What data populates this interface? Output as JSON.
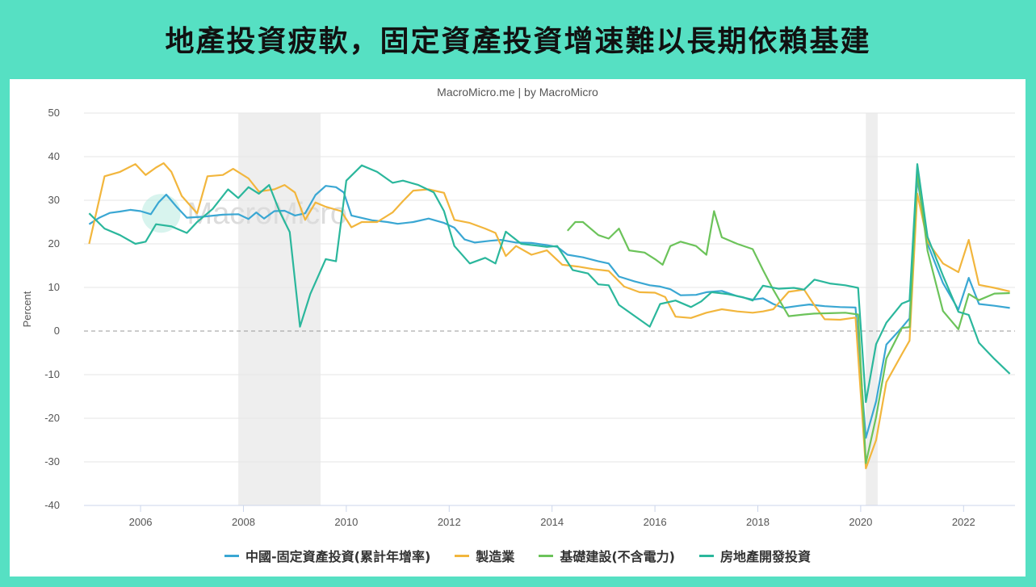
{
  "title": "地產投資疲軟，固定資產投資增速難以長期依賴基建",
  "credit": "MacroMicro.me | by MacroMicro",
  "watermark": "MacroMicro",
  "chart_data": {
    "type": "line",
    "ylabel": "Percent",
    "ylim": [
      -40,
      50
    ],
    "yticks": [
      50,
      40,
      30,
      20,
      10,
      0,
      -10,
      -20,
      -30,
      -40
    ],
    "xlim": [
      2004.9,
      2023.0
    ],
    "xticks": [
      2006,
      2008,
      2010,
      2012,
      2014,
      2016,
      2018,
      2020,
      2022
    ],
    "grid": true,
    "legend_position": "bottom",
    "zero_line": "dashed",
    "shaded_periods": [
      [
        2007.9,
        2009.5
      ],
      [
        2020.1,
        2020.33
      ]
    ],
    "series": [
      {
        "name": "中國-固定資產投資(累計年增率)",
        "color": "#3aa7d3",
        "points": [
          [
            2005.0,
            24.5
          ],
          [
            2005.2,
            26
          ],
          [
            2005.4,
            27.1
          ],
          [
            2005.6,
            27.4
          ],
          [
            2005.8,
            27.8
          ],
          [
            2006.0,
            27.5
          ],
          [
            2006.2,
            26.8
          ],
          [
            2006.35,
            29.5
          ],
          [
            2006.5,
            31.3
          ],
          [
            2006.7,
            28.5
          ],
          [
            2006.9,
            26.0
          ],
          [
            2007.2,
            26.2
          ],
          [
            2007.6,
            26.7
          ],
          [
            2007.9,
            26.8
          ],
          [
            2008.1,
            25.7
          ],
          [
            2008.25,
            27.2
          ],
          [
            2008.4,
            25.8
          ],
          [
            2008.6,
            27.5
          ],
          [
            2008.8,
            27.6
          ],
          [
            2009.0,
            26.5
          ],
          [
            2009.2,
            27.0
          ],
          [
            2009.4,
            31.2
          ],
          [
            2009.6,
            33.3
          ],
          [
            2009.8,
            33.0
          ],
          [
            2009.95,
            31.8
          ],
          [
            2010.1,
            26.5
          ],
          [
            2010.5,
            25.4
          ],
          [
            2010.8,
            25.0
          ],
          [
            2011.0,
            24.6
          ],
          [
            2011.3,
            25.0
          ],
          [
            2011.6,
            25.8
          ],
          [
            2011.9,
            24.8
          ],
          [
            2012.1,
            23.7
          ],
          [
            2012.3,
            21.0
          ],
          [
            2012.5,
            20.3
          ],
          [
            2012.8,
            20.7
          ],
          [
            2013.0,
            20.9
          ],
          [
            2013.3,
            20.3
          ],
          [
            2013.6,
            20.2
          ],
          [
            2013.9,
            19.7
          ],
          [
            2014.1,
            19.3
          ],
          [
            2014.3,
            17.5
          ],
          [
            2014.6,
            16.9
          ],
          [
            2014.9,
            16.0
          ],
          [
            2015.1,
            15.5
          ],
          [
            2015.3,
            12.5
          ],
          [
            2015.6,
            11.4
          ],
          [
            2015.9,
            10.5
          ],
          [
            2016.1,
            10.2
          ],
          [
            2016.3,
            9.6
          ],
          [
            2016.5,
            8.2
          ],
          [
            2016.8,
            8.3
          ],
          [
            2017.0,
            8.9
          ],
          [
            2017.3,
            9.2
          ],
          [
            2017.6,
            8.0
          ],
          [
            2017.9,
            7.2
          ],
          [
            2018.1,
            7.5
          ],
          [
            2018.3,
            6.2
          ],
          [
            2018.5,
            5.3
          ],
          [
            2018.8,
            5.8
          ],
          [
            2019.0,
            6.1
          ],
          [
            2019.3,
            5.7
          ],
          [
            2019.6,
            5.5
          ],
          [
            2019.9,
            5.4
          ],
          [
            2020.1,
            -24.5
          ],
          [
            2020.3,
            -16.1
          ],
          [
            2020.5,
            -3.1
          ],
          [
            2020.8,
            0.8
          ],
          [
            2020.95,
            2.9
          ],
          [
            2021.1,
            35.0
          ],
          [
            2021.3,
            20.0
          ],
          [
            2021.6,
            11.0
          ],
          [
            2021.9,
            4.9
          ],
          [
            2022.1,
            12.2
          ],
          [
            2022.3,
            6.2
          ],
          [
            2022.6,
            5.8
          ],
          [
            2022.9,
            5.3
          ]
        ]
      },
      {
        "name": "製造業",
        "color": "#f2b63d",
        "points": [
          [
            2005.0,
            20
          ],
          [
            2005.3,
            35.5
          ],
          [
            2005.6,
            36.5
          ],
          [
            2005.9,
            38.3
          ],
          [
            2006.1,
            35.8
          ],
          [
            2006.3,
            37.5
          ],
          [
            2006.45,
            38.5
          ],
          [
            2006.6,
            36.5
          ],
          [
            2006.8,
            31
          ],
          [
            2007.1,
            27
          ],
          [
            2007.3,
            35.5
          ],
          [
            2007.6,
            35.8
          ],
          [
            2007.8,
            37.2
          ],
          [
            2008.1,
            35.0
          ],
          [
            2008.3,
            32.0
          ],
          [
            2008.6,
            32.5
          ],
          [
            2008.8,
            33.5
          ],
          [
            2009.0,
            31.8
          ],
          [
            2009.2,
            25.5
          ],
          [
            2009.4,
            29.5
          ],
          [
            2009.6,
            28.5
          ],
          [
            2009.9,
            27.5
          ],
          [
            2010.1,
            23.8
          ],
          [
            2010.3,
            25.0
          ],
          [
            2010.6,
            25.0
          ],
          [
            2010.9,
            27.2
          ],
          [
            2011.1,
            29.8
          ],
          [
            2011.3,
            32.2
          ],
          [
            2011.6,
            32.5
          ],
          [
            2011.9,
            31.7
          ],
          [
            2012.1,
            25.5
          ],
          [
            2012.4,
            24.8
          ],
          [
            2012.7,
            23.5
          ],
          [
            2012.9,
            22.5
          ],
          [
            2013.1,
            17.2
          ],
          [
            2013.3,
            19.5
          ],
          [
            2013.6,
            17.5
          ],
          [
            2013.9,
            18.5
          ],
          [
            2014.2,
            15.2
          ],
          [
            2014.5,
            14.8
          ],
          [
            2014.8,
            14.2
          ],
          [
            2015.1,
            13.8
          ],
          [
            2015.4,
            10.2
          ],
          [
            2015.7,
            8.9
          ],
          [
            2016.0,
            8.8
          ],
          [
            2016.2,
            7.8
          ],
          [
            2016.4,
            3.3
          ],
          [
            2016.7,
            3.0
          ],
          [
            2017.0,
            4.2
          ],
          [
            2017.3,
            5.0
          ],
          [
            2017.6,
            4.5
          ],
          [
            2017.9,
            4.2
          ],
          [
            2018.1,
            4.5
          ],
          [
            2018.3,
            5.0
          ],
          [
            2018.6,
            9.0
          ],
          [
            2018.9,
            9.5
          ],
          [
            2019.1,
            5.9
          ],
          [
            2019.3,
            2.7
          ],
          [
            2019.6,
            2.6
          ],
          [
            2019.9,
            3.1
          ],
          [
            2020.1,
            -31.5
          ],
          [
            2020.3,
            -25
          ],
          [
            2020.5,
            -11.7
          ],
          [
            2020.8,
            -5.3
          ],
          [
            2020.95,
            -2.2
          ],
          [
            2021.1,
            31.5
          ],
          [
            2021.3,
            20.5
          ],
          [
            2021.6,
            15.5
          ],
          [
            2021.9,
            13.5
          ],
          [
            2022.1,
            20.9
          ],
          [
            2022.3,
            10.6
          ],
          [
            2022.6,
            9.9
          ],
          [
            2022.9,
            9.1
          ]
        ]
      },
      {
        "name": "基礎建設(不含電力)",
        "color": "#6cc35a",
        "points": [
          [
            2014.3,
            23.0
          ],
          [
            2014.45,
            25.0
          ],
          [
            2014.6,
            25.0
          ],
          [
            2014.9,
            22.0
          ],
          [
            2015.1,
            21.2
          ],
          [
            2015.3,
            23.5
          ],
          [
            2015.5,
            18.5
          ],
          [
            2015.8,
            18.0
          ],
          [
            2016.0,
            16.5
          ],
          [
            2016.15,
            15.2
          ],
          [
            2016.3,
            19.5
          ],
          [
            2016.5,
            20.5
          ],
          [
            2016.8,
            19.5
          ],
          [
            2017.0,
            17.5
          ],
          [
            2017.15,
            27.5
          ],
          [
            2017.3,
            21.5
          ],
          [
            2017.6,
            20.0
          ],
          [
            2017.9,
            18.8
          ],
          [
            2018.1,
            14.0
          ],
          [
            2018.3,
            9.5
          ],
          [
            2018.6,
            3.4
          ],
          [
            2018.9,
            3.8
          ],
          [
            2019.1,
            4.0
          ],
          [
            2019.4,
            4.1
          ],
          [
            2019.7,
            4.2
          ],
          [
            2019.95,
            3.8
          ],
          [
            2020.1,
            -30.3
          ],
          [
            2020.3,
            -19.7
          ],
          [
            2020.5,
            -6.3
          ],
          [
            2020.8,
            0.7
          ],
          [
            2020.95,
            0.9
          ],
          [
            2021.1,
            36.6
          ],
          [
            2021.3,
            18.4
          ],
          [
            2021.6,
            4.6
          ],
          [
            2021.9,
            0.4
          ],
          [
            2022.1,
            8.5
          ],
          [
            2022.3,
            7.1
          ],
          [
            2022.6,
            8.6
          ],
          [
            2022.9,
            8.7
          ]
        ]
      },
      {
        "name": "房地產開發投資",
        "color": "#2bb79c",
        "points": [
          [
            2005.0,
            27.0
          ],
          [
            2005.3,
            23.5
          ],
          [
            2005.6,
            22.0
          ],
          [
            2005.9,
            20.0
          ],
          [
            2006.1,
            20.5
          ],
          [
            2006.3,
            24.5
          ],
          [
            2006.6,
            24.0
          ],
          [
            2006.9,
            22.5
          ],
          [
            2007.1,
            25.0
          ],
          [
            2007.4,
            28.0
          ],
          [
            2007.7,
            32.5
          ],
          [
            2007.9,
            30.5
          ],
          [
            2008.1,
            33.0
          ],
          [
            2008.3,
            31.5
          ],
          [
            2008.5,
            33.5
          ],
          [
            2008.7,
            27.5
          ],
          [
            2008.9,
            22.7
          ],
          [
            2009.1,
            1.0
          ],
          [
            2009.3,
            8.5
          ],
          [
            2009.6,
            16.5
          ],
          [
            2009.8,
            16.0
          ],
          [
            2010.0,
            34.5
          ],
          [
            2010.3,
            38.0
          ],
          [
            2010.6,
            36.5
          ],
          [
            2010.9,
            34.0
          ],
          [
            2011.1,
            34.5
          ],
          [
            2011.4,
            33.5
          ],
          [
            2011.7,
            31.8
          ],
          [
            2011.9,
            27.5
          ],
          [
            2012.1,
            19.5
          ],
          [
            2012.4,
            15.5
          ],
          [
            2012.7,
            16.8
          ],
          [
            2012.9,
            15.5
          ],
          [
            2013.1,
            22.8
          ],
          [
            2013.4,
            20.0
          ],
          [
            2013.7,
            19.6
          ],
          [
            2013.9,
            19.3
          ],
          [
            2014.1,
            19.5
          ],
          [
            2014.4,
            14.0
          ],
          [
            2014.7,
            13.2
          ],
          [
            2014.9,
            10.7
          ],
          [
            2015.1,
            10.5
          ],
          [
            2015.3,
            6.0
          ],
          [
            2015.6,
            3.5
          ],
          [
            2015.9,
            1.0
          ],
          [
            2016.1,
            6.2
          ],
          [
            2016.4,
            7.0
          ],
          [
            2016.7,
            5.5
          ],
          [
            2016.9,
            6.8
          ],
          [
            2017.1,
            8.9
          ],
          [
            2017.4,
            8.5
          ],
          [
            2017.7,
            7.8
          ],
          [
            2017.9,
            7.0
          ],
          [
            2018.1,
            10.4
          ],
          [
            2018.4,
            9.7
          ],
          [
            2018.7,
            9.9
          ],
          [
            2018.9,
            9.5
          ],
          [
            2019.1,
            11.8
          ],
          [
            2019.4,
            10.9
          ],
          [
            2019.7,
            10.5
          ],
          [
            2019.95,
            9.9
          ],
          [
            2020.1,
            -16.3
          ],
          [
            2020.3,
            -3.0
          ],
          [
            2020.5,
            1.9
          ],
          [
            2020.8,
            6.3
          ],
          [
            2020.95,
            7.0
          ],
          [
            2021.1,
            38.3
          ],
          [
            2021.3,
            21.6
          ],
          [
            2021.6,
            12.7
          ],
          [
            2021.9,
            4.4
          ],
          [
            2022.1,
            3.7
          ],
          [
            2022.3,
            -2.7
          ],
          [
            2022.6,
            -6.4
          ],
          [
            2022.9,
            -9.8
          ]
        ]
      }
    ]
  }
}
